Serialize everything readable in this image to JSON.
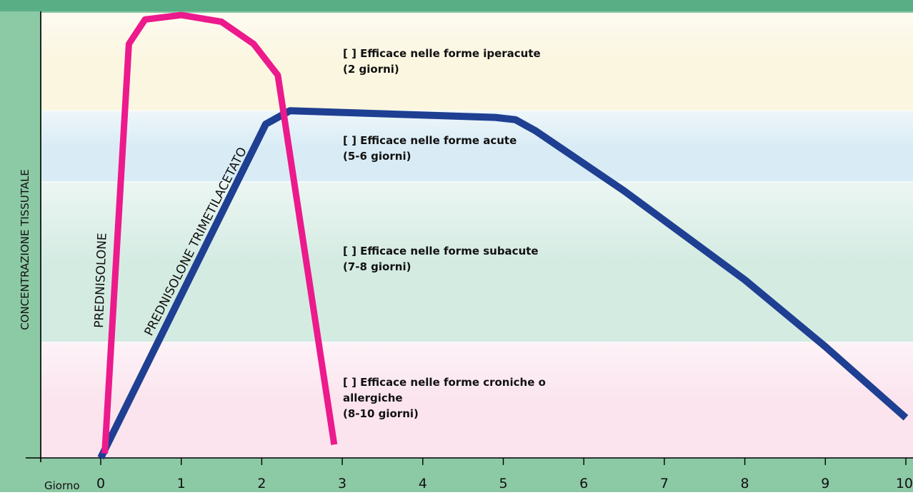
{
  "chart_data": {
    "type": "line",
    "title": "",
    "ylabel": "CONCENTRAZIONE TISSUTALE",
    "xlabel": "Giorno",
    "xlim": [
      0,
      10
    ],
    "ylim": [
      0,
      100
    ],
    "x_ticks": [
      0,
      1,
      2,
      3,
      4,
      5,
      6,
      7,
      8,
      9,
      10
    ],
    "grid": false,
    "legend": "none",
    "colors": {
      "frame": "#5aae86",
      "panel_bg": "#8cc9a5",
      "iperacute": "#fbf6e0",
      "acute": "#d9ecf5",
      "subacute": "#d4ebe2",
      "croniche": "#fbe4ee",
      "prednisolone": "#ec1a8c",
      "trimetilacetato": "#1e3f92"
    },
    "bands": [
      {
        "name": "iperacute",
        "from": 78,
        "to": 100,
        "lines": [
          "[ ] Efficace nelle forme iperacute",
          "(2 giorni)"
        ]
      },
      {
        "name": "acute",
        "from": 62,
        "to": 78,
        "lines": [
          "[ ] Efficace nelle forme acute",
          "(5-6 giorni)"
        ]
      },
      {
        "name": "subacute",
        "from": 26,
        "to": 62,
        "lines": [
          "[ ] Efficace nelle forme subacute",
          "(7-8 giorni)"
        ]
      },
      {
        "name": "croniche",
        "from": 0,
        "to": 26,
        "lines": [
          "[ ] Efficace nelle forme croniche o",
          "allergiche",
          "(8-10 giorni)"
        ]
      }
    ],
    "series": [
      {
        "name": "PREDNISOLONE",
        "color": "#ec1a8c",
        "points": [
          [
            0.05,
            1
          ],
          [
            0.35,
            93
          ],
          [
            0.55,
            98.5
          ],
          [
            1.0,
            99.5
          ],
          [
            1.5,
            98
          ],
          [
            1.9,
            93
          ],
          [
            2.2,
            86
          ],
          [
            2.9,
            3
          ]
        ]
      },
      {
        "name": "PREDNISOLONE TRIMETILACETATO",
        "color": "#1e3f92",
        "points": [
          [
            0.0,
            0
          ],
          [
            2.05,
            75
          ],
          [
            2.35,
            78
          ],
          [
            4.9,
            76.5
          ],
          [
            5.15,
            76
          ],
          [
            5.4,
            73.5
          ],
          [
            6.5,
            60
          ],
          [
            8.0,
            40
          ],
          [
            9.0,
            25
          ],
          [
            9.5,
            17
          ],
          [
            10.0,
            9
          ]
        ]
      }
    ]
  }
}
